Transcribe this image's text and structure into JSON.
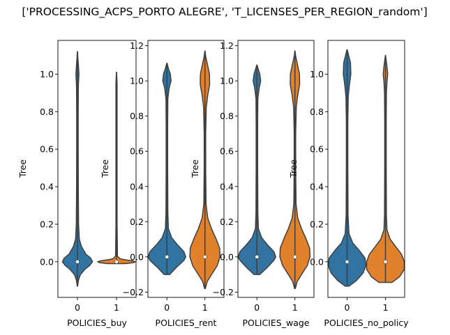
{
  "figure": {
    "suptitle": "['PROCESSING_ACPS_PORTO ALEGRE', 'T_LICENSES_PER_REGION_random']"
  },
  "colors": {
    "series0": "#3274a1",
    "series1": "#e1812c",
    "outline": "#3f3f3f",
    "axis": "#000000"
  },
  "chart_data": [
    {
      "type": "violin",
      "xlabel": "POLICIES_buy",
      "ylabel": "Tree",
      "categories": [
        "0",
        "1"
      ],
      "ylim": [
        -0.19,
        1.18
      ],
      "yticks": [
        0.0,
        0.2,
        0.4,
        0.6,
        0.8,
        1.0
      ],
      "yticklabels": [
        "0.0",
        "0.2",
        "0.4",
        "0.6",
        "0.8",
        "1.0"
      ],
      "violins": [
        {
          "category": "0",
          "median": 0.0,
          "min": -0.13,
          "max": 1.12,
          "density": [
            [
              -0.13,
              0.01
            ],
            [
              -0.1,
              0.05
            ],
            [
              -0.07,
              0.15
            ],
            [
              -0.04,
              0.4
            ],
            [
              -0.02,
              0.65
            ],
            [
              0.0,
              0.8
            ],
            [
              0.02,
              0.7
            ],
            [
              0.04,
              0.45
            ],
            [
              0.08,
              0.22
            ],
            [
              0.12,
              0.1
            ],
            [
              0.2,
              0.06
            ],
            [
              0.4,
              0.045
            ],
            [
              0.6,
              0.04
            ],
            [
              0.8,
              0.04
            ],
            [
              0.94,
              0.05
            ],
            [
              1.0,
              0.08
            ],
            [
              1.05,
              0.05
            ],
            [
              1.09,
              0.02
            ],
            [
              1.12,
              0.005
            ]
          ]
        },
        {
          "category": "1",
          "median": 0.0,
          "min": -0.01,
          "max": 1.01,
          "density": [
            [
              -0.01,
              0.5
            ],
            [
              -0.005,
              0.9
            ],
            [
              0.0,
              1.0
            ],
            [
              0.005,
              0.85
            ],
            [
              0.01,
              0.5
            ],
            [
              0.015,
              0.2
            ],
            [
              0.03,
              0.05
            ],
            [
              0.2,
              0.03
            ],
            [
              0.5,
              0.03
            ],
            [
              0.8,
              0.03
            ],
            [
              0.95,
              0.03
            ],
            [
              1.01,
              0.005
            ]
          ]
        }
      ]
    },
    {
      "type": "violin",
      "xlabel": "POLICIES_rent",
      "ylabel": "Tree",
      "categories": [
        "0",
        "1"
      ],
      "ylim": [
        -0.23,
        1.23
      ],
      "yticks": [
        -0.2,
        0.0,
        0.2,
        0.4,
        0.6,
        0.8,
        1.0,
        1.2
      ],
      "yticklabels": [
        "−0.2",
        "0.0",
        "0.2",
        "0.4",
        "0.6",
        "0.8",
        "1.0",
        "1.2"
      ],
      "violins": [
        {
          "category": "0",
          "median": 0.0,
          "min": -0.1,
          "max": 1.1,
          "density": [
            [
              -0.1,
              0.15
            ],
            [
              -0.06,
              0.5
            ],
            [
              -0.02,
              0.9
            ],
            [
              0.0,
              1.0
            ],
            [
              0.03,
              0.9
            ],
            [
              0.07,
              0.55
            ],
            [
              0.11,
              0.25
            ],
            [
              0.16,
              0.08
            ],
            [
              0.25,
              0.05
            ],
            [
              0.5,
              0.04
            ],
            [
              0.75,
              0.04
            ],
            [
              0.9,
              0.05
            ],
            [
              0.96,
              0.12
            ],
            [
              1.0,
              0.22
            ],
            [
              1.04,
              0.18
            ],
            [
              1.07,
              0.08
            ],
            [
              1.1,
              0.01
            ]
          ]
        },
        {
          "category": "1",
          "median": 0.0,
          "min": -0.18,
          "max": 1.17,
          "density": [
            [
              -0.18,
              0.02
            ],
            [
              -0.14,
              0.12
            ],
            [
              -0.1,
              0.35
            ],
            [
              -0.05,
              0.65
            ],
            [
              0.0,
              0.8
            ],
            [
              0.05,
              0.78
            ],
            [
              0.1,
              0.6
            ],
            [
              0.16,
              0.35
            ],
            [
              0.22,
              0.15
            ],
            [
              0.3,
              0.06
            ],
            [
              0.5,
              0.04
            ],
            [
              0.7,
              0.04
            ],
            [
              0.85,
              0.07
            ],
            [
              0.92,
              0.15
            ],
            [
              0.98,
              0.25
            ],
            [
              1.04,
              0.24
            ],
            [
              1.1,
              0.12
            ],
            [
              1.14,
              0.04
            ],
            [
              1.17,
              0.005
            ]
          ]
        }
      ]
    },
    {
      "type": "violin",
      "xlabel": "POLICIES_wage",
      "ylabel": "Tree",
      "categories": [
        "0",
        "1"
      ],
      "ylim": [
        -0.23,
        1.23
      ],
      "yticks": [
        -0.2,
        0.0,
        0.2,
        0.4,
        0.6,
        0.8,
        1.0,
        1.2
      ],
      "yticklabels": [
        "−0.2",
        "0.0",
        "0.2",
        "0.4",
        "0.6",
        "0.8",
        "1.0",
        "1.2"
      ],
      "violins": [
        {
          "category": "0",
          "median": 0.0,
          "min": -0.1,
          "max": 1.09,
          "density": [
            [
              -0.1,
              0.15
            ],
            [
              -0.06,
              0.55
            ],
            [
              -0.02,
              0.9
            ],
            [
              0.0,
              1.0
            ],
            [
              0.03,
              0.9
            ],
            [
              0.07,
              0.55
            ],
            [
              0.11,
              0.25
            ],
            [
              0.16,
              0.08
            ],
            [
              0.25,
              0.05
            ],
            [
              0.5,
              0.04
            ],
            [
              0.75,
              0.04
            ],
            [
              0.9,
              0.05
            ],
            [
              0.96,
              0.12
            ],
            [
              1.0,
              0.2
            ],
            [
              1.04,
              0.15
            ],
            [
              1.07,
              0.06
            ],
            [
              1.09,
              0.01
            ]
          ]
        },
        {
          "category": "1",
          "median": 0.0,
          "min": -0.18,
          "max": 1.17,
          "density": [
            [
              -0.18,
              0.02
            ],
            [
              -0.14,
              0.12
            ],
            [
              -0.1,
              0.35
            ],
            [
              -0.05,
              0.65
            ],
            [
              0.0,
              0.8
            ],
            [
              0.05,
              0.78
            ],
            [
              0.1,
              0.6
            ],
            [
              0.16,
              0.35
            ],
            [
              0.22,
              0.15
            ],
            [
              0.3,
              0.06
            ],
            [
              0.5,
              0.04
            ],
            [
              0.7,
              0.04
            ],
            [
              0.85,
              0.07
            ],
            [
              0.92,
              0.15
            ],
            [
              0.98,
              0.25
            ],
            [
              1.04,
              0.24
            ],
            [
              1.1,
              0.12
            ],
            [
              1.14,
              0.04
            ],
            [
              1.17,
              0.005
            ]
          ]
        }
      ]
    },
    {
      "type": "violin",
      "xlabel": "POLICIES_no_policy",
      "ylabel": "Tree",
      "categories": [
        "0",
        "1"
      ],
      "ylim": [
        -0.19,
        1.18
      ],
      "yticks": [
        0.0,
        0.2,
        0.4,
        0.6,
        0.8,
        1.0
      ],
      "yticklabels": [
        "0.0",
        "0.2",
        "0.4",
        "0.6",
        "0.8",
        "1.0"
      ],
      "violins": [
        {
          "category": "0",
          "median": 0.0,
          "min": -0.13,
          "max": 1.13,
          "density": [
            [
              -0.13,
              0.1
            ],
            [
              -0.1,
              0.5
            ],
            [
              -0.06,
              0.85
            ],
            [
              -0.02,
              1.0
            ],
            [
              0.02,
              0.95
            ],
            [
              0.06,
              0.65
            ],
            [
              0.1,
              0.3
            ],
            [
              0.15,
              0.1
            ],
            [
              0.25,
              0.05
            ],
            [
              0.5,
              0.04
            ],
            [
              0.75,
              0.04
            ],
            [
              0.88,
              0.06
            ],
            [
              0.94,
              0.12
            ],
            [
              1.0,
              0.2
            ],
            [
              1.06,
              0.18
            ],
            [
              1.1,
              0.08
            ],
            [
              1.13,
              0.01
            ]
          ]
        },
        {
          "category": "1",
          "median": 0.0,
          "min": -0.11,
          "max": 1.1,
          "density": [
            [
              -0.11,
              0.35
            ],
            [
              -0.08,
              0.75
            ],
            [
              -0.04,
              1.0
            ],
            [
              0.0,
              1.0
            ],
            [
              0.04,
              0.85
            ],
            [
              0.08,
              0.55
            ],
            [
              0.12,
              0.25
            ],
            [
              0.17,
              0.08
            ],
            [
              0.25,
              0.05
            ],
            [
              0.5,
              0.04
            ],
            [
              0.75,
              0.04
            ],
            [
              0.9,
              0.05
            ],
            [
              0.96,
              0.08
            ],
            [
              1.0,
              0.12
            ],
            [
              1.04,
              0.08
            ],
            [
              1.08,
              0.03
            ],
            [
              1.1,
              0.005
            ]
          ]
        }
      ]
    }
  ]
}
